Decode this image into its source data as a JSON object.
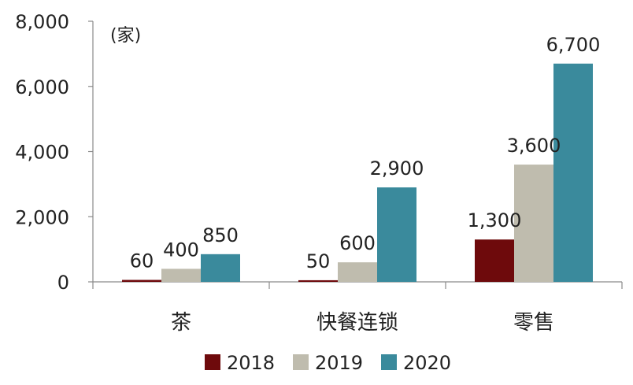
{
  "chart_data": {
    "type": "bar",
    "unit_label": "(家)",
    "categories": [
      "茶",
      "快餐连锁",
      "零售"
    ],
    "series": [
      {
        "name": "2018",
        "color": "#6e0a0c",
        "values": [
          60,
          50,
          1300
        ],
        "labels": [
          "60",
          "50",
          "1,300"
        ]
      },
      {
        "name": "2019",
        "color": "#bfbcae",
        "values": [
          400,
          600,
          3600
        ],
        "labels": [
          "400",
          "600",
          "3,600"
        ]
      },
      {
        "name": "2020",
        "color": "#3a8a9c",
        "values": [
          850,
          2900,
          6700
        ],
        "labels": [
          "850",
          "2,900",
          "6,700"
        ]
      }
    ],
    "yticks": [
      0,
      2000,
      4000,
      6000,
      8000
    ],
    "ytick_labels": [
      "0",
      "2,000",
      "4,000",
      "6,000",
      "8,000"
    ],
    "ylim": [
      0,
      8000
    ],
    "title": "",
    "xlabel": "",
    "ylabel": "",
    "legend_position": "bottom"
  }
}
